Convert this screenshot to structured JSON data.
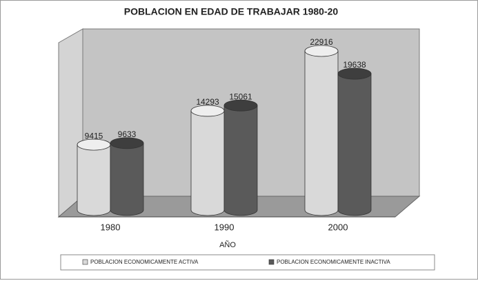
{
  "chart_data": {
    "type": "bar3d",
    "title": "POBLACION EN EDAD DE TRABAJAR 1980-20",
    "categories": [
      "1980",
      "1990",
      "2000"
    ],
    "series": [
      {
        "name": "POBLACION ECONOMICAMENTE ACTIVA",
        "color": "#d9d9d9",
        "values": [
          9415,
          14293,
          22916
        ]
      },
      {
        "name": "POBLACION ECONOMICAMENTE  INACTIVA",
        "color": "#5a5a5a",
        "values": [
          9633,
          15061,
          19638
        ]
      }
    ],
    "xlabel": "AÑO",
    "ylim": [
      0,
      25000
    ]
  }
}
